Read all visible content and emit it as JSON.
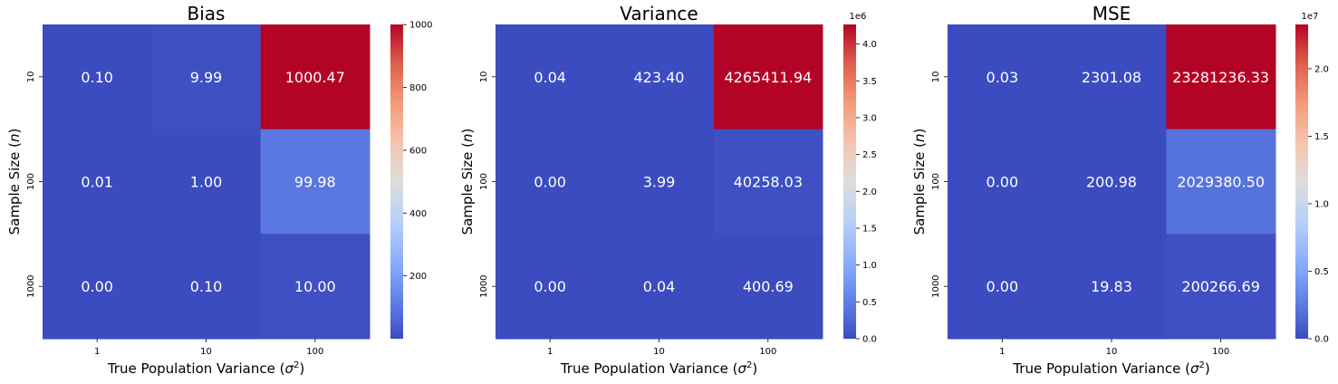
{
  "chart_data": [
    {
      "type": "heatmap",
      "title": "Bias",
      "x_categories": [
        "1",
        "10",
        "100"
      ],
      "y_categories": [
        "10",
        "100",
        "1000"
      ],
      "xlabel_main": "True Population Variance (",
      "xlabel_symbol": "σ",
      "xlabel_sup": "2",
      "xlabel_close": ")",
      "ylabel_main": "Sample Size (",
      "ylabel_symbol": "n",
      "ylabel_close": ")",
      "values": [
        [
          0.1,
          9.99,
          1000.47
        ],
        [
          0.01,
          1.0,
          99.98
        ],
        [
          0.0,
          0.1,
          10.0
        ]
      ],
      "value_labels": [
        [
          "0.10",
          "9.99",
          "1000.47"
        ],
        [
          "0.01",
          "1.00",
          "99.98"
        ],
        [
          "0.00",
          "0.10",
          "10.00"
        ]
      ],
      "colormap": "coolwarm",
      "vmin": 0.0,
      "vmax": 1000.47,
      "colorbar_ticks": [
        200,
        400,
        600,
        800,
        1000
      ],
      "colorbar_tick_labels": [
        "200",
        "400",
        "600",
        "800",
        "1000"
      ],
      "colorbar_offset": ""
    },
    {
      "type": "heatmap",
      "title": "Variance",
      "x_categories": [
        "1",
        "10",
        "100"
      ],
      "y_categories": [
        "10",
        "100",
        "1000"
      ],
      "xlabel_main": "True Population Variance (",
      "xlabel_symbol": "σ",
      "xlabel_sup": "2",
      "xlabel_close": ")",
      "ylabel_main": "Sample Size (",
      "ylabel_symbol": "n",
      "ylabel_close": ")",
      "values": [
        [
          0.04,
          423.4,
          4265411.94
        ],
        [
          0.0,
          3.99,
          40258.03
        ],
        [
          0.0,
          0.04,
          400.69
        ]
      ],
      "value_labels": [
        [
          "0.04",
          "423.40",
          "4265411.94"
        ],
        [
          "0.00",
          "3.99",
          "40258.03"
        ],
        [
          "0.00",
          "0.04",
          "400.69"
        ]
      ],
      "colormap": "coolwarm",
      "vmin": 0.0,
      "vmax": 4265411.94,
      "colorbar_ticks": [
        0,
        500000,
        1000000,
        1500000,
        2000000,
        2500000,
        3000000,
        3500000,
        4000000
      ],
      "colorbar_tick_labels": [
        "0.0",
        "0.5",
        "1.0",
        "1.5",
        "2.0",
        "2.5",
        "3.0",
        "3.5",
        "4.0"
      ],
      "colorbar_offset": "1e6"
    },
    {
      "type": "heatmap",
      "title": "MSE",
      "x_categories": [
        "1",
        "10",
        "100"
      ],
      "y_categories": [
        "10",
        "100",
        "1000"
      ],
      "xlabel_main": "True Population Variance (",
      "xlabel_symbol": "σ",
      "xlabel_sup": "2",
      "xlabel_close": ")",
      "ylabel_main": "Sample Size (",
      "ylabel_symbol": "n",
      "ylabel_close": ")",
      "values": [
        [
          0.03,
          2301.08,
          23281236.33
        ],
        [
          0.0,
          200.98,
          2029380.5
        ],
        [
          0.0,
          19.83,
          200266.69
        ]
      ],
      "value_labels": [
        [
          "0.03",
          "2301.08",
          "23281236.33"
        ],
        [
          "0.00",
          "200.98",
          "2029380.50"
        ],
        [
          "0.00",
          "19.83",
          "200266.69"
        ]
      ],
      "colormap": "coolwarm",
      "vmin": 0.0,
      "vmax": 23281236.33,
      "colorbar_ticks": [
        0,
        5000000,
        10000000,
        15000000,
        20000000
      ],
      "colorbar_tick_labels": [
        "0.0",
        "0.5",
        "1.0",
        "1.5",
        "2.0"
      ],
      "colorbar_offset": "1e7"
    }
  ]
}
